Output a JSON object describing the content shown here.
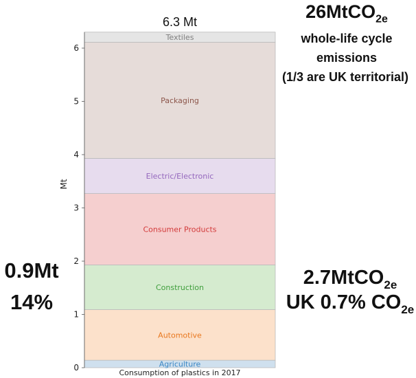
{
  "chart_data": {
    "type": "bar",
    "stacked": true,
    "title": "6.3 Mt",
    "ylabel": "Mt",
    "xlabel": "Consumption of plastics in 2017",
    "ylim": [
      0,
      6.3
    ],
    "yticks": [
      "0",
      "1",
      "2",
      "3",
      "4",
      "5",
      "6"
    ],
    "series": [
      {
        "name": "Agriculture",
        "value": 0.14,
        "fill": "#cfe0ee",
        "text_color": "#3a86c4"
      },
      {
        "name": "Automotive",
        "value": 0.95,
        "fill": "#fce1cb",
        "text_color": "#e8771e"
      },
      {
        "name": "Construction",
        "value": 0.84,
        "fill": "#d5ebcf",
        "text_color": "#3f9e3c"
      },
      {
        "name": "Consumer Products",
        "value": 1.34,
        "fill": "#f5cfcf",
        "text_color": "#d23a3a"
      },
      {
        "name": "Electric/Electronic",
        "value": 0.66,
        "fill": "#e7dcee",
        "text_color": "#9467bd"
      },
      {
        "name": "Packaging",
        "value": 2.18,
        "fill": "#e6dcd9",
        "text_color": "#8c564b"
      },
      {
        "name": "Textiles",
        "value": 0.19,
        "fill": "#e5e5e5",
        "text_color": "#7f7f7f"
      }
    ]
  },
  "annotations": {
    "total_emissions": "26MtCO",
    "total_emissions_sub": "2e",
    "lifecycle_1": "whole-life cycle",
    "lifecycle_2": "emissions",
    "lifecycle_3": "(1/3 are UK territorial)",
    "left_value": "0.9Mt",
    "left_percent": "14%",
    "right_emissions": "2.7MtCO",
    "right_emissions_sub": "2e",
    "right_uk": "UK 0.7% CO",
    "right_uk_sub": "2e"
  }
}
